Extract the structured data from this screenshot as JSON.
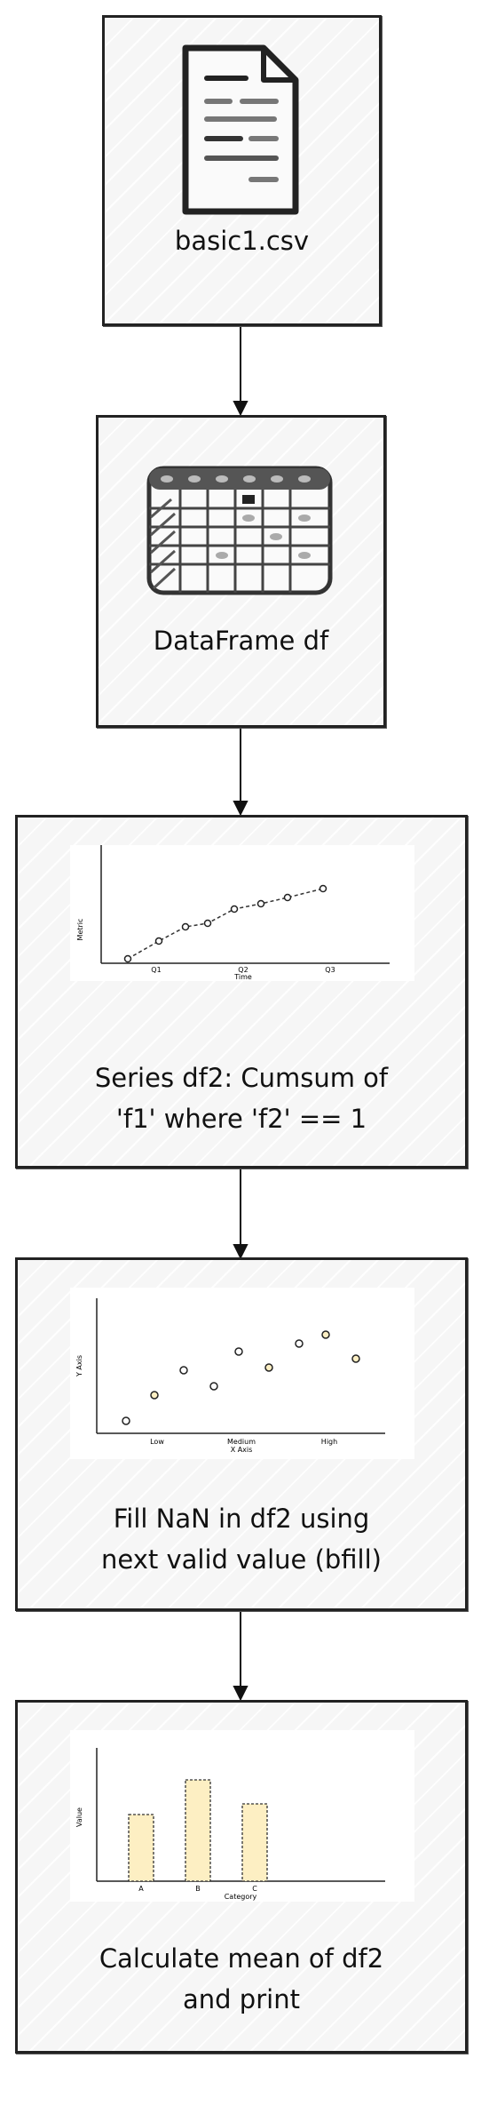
{
  "nodes": [
    {
      "id": "csv",
      "label": "basic1.csv",
      "icon": "document-icon"
    },
    {
      "id": "df",
      "label": "DataFrame df",
      "icon": "table-icon"
    },
    {
      "id": "cumsum",
      "label_lines": [
        "Series df2: Cumsum of",
        "'f1' where 'f2' == 1"
      ],
      "icon": "line-chart-icon"
    },
    {
      "id": "bfill",
      "label_lines": [
        "Fill NaN in df2 using",
        "next valid value (bfill)"
      ],
      "icon": "scatter-chart-icon"
    },
    {
      "id": "mean",
      "label_lines": [
        "Calculate mean of df2",
        "and print"
      ],
      "icon": "bar-chart-icon"
    }
  ],
  "charts": {
    "line": {
      "xticks": [
        "Q1",
        "Q2",
        "Q3"
      ],
      "xlabel": "Time",
      "ylabel": "Metric"
    },
    "scatter": {
      "xticks": [
        "Low",
        "Medium",
        "High"
      ],
      "xlabel": "X Axis",
      "ylabel": "Y Axis"
    },
    "bar": {
      "xticks": [
        "A",
        "B",
        "C"
      ],
      "xlabel": "Category",
      "ylabel": "Value"
    }
  },
  "colors": {
    "stroke": "#222222",
    "box_fill": "#f6f6f6",
    "accent_fill": "#fdefc3"
  }
}
